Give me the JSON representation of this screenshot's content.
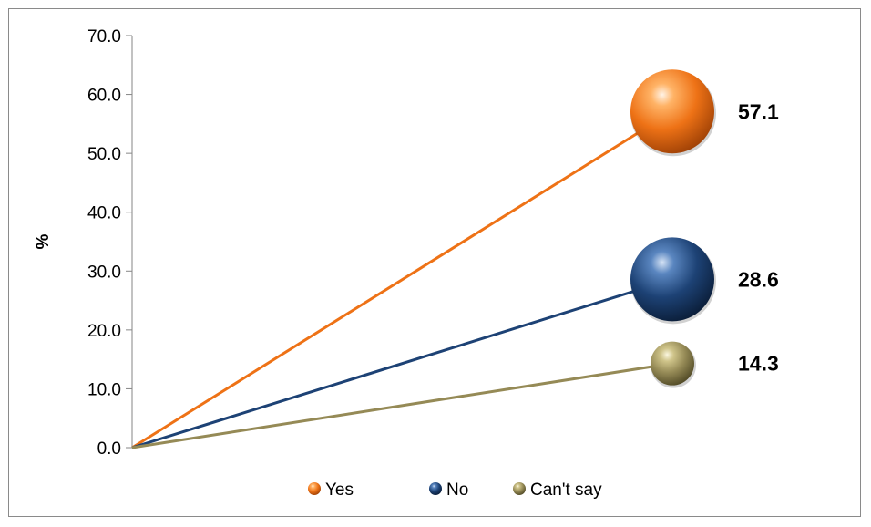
{
  "chart_data": {
    "type": "line",
    "ylabel": "%",
    "ylim": [
      0,
      70
    ],
    "y_ticks": [
      "0.0",
      "10.0",
      "20.0",
      "30.0",
      "40.0",
      "50.0",
      "60.0",
      "70.0"
    ],
    "series": [
      {
        "name": "Yes",
        "start": 0,
        "value": 57.1,
        "label": "57.1",
        "color": "#ee7216",
        "bubble_size": "large"
      },
      {
        "name": "No",
        "start": 0,
        "value": 28.6,
        "label": "28.6",
        "color": "#1d4275",
        "bubble_size": "large"
      },
      {
        "name": "Can't say",
        "start": 0,
        "value": 14.3,
        "label": "14.3",
        "color": "#958a56",
        "bubble_size": "small"
      }
    ],
    "legend_position": "bottom",
    "grid": false
  }
}
